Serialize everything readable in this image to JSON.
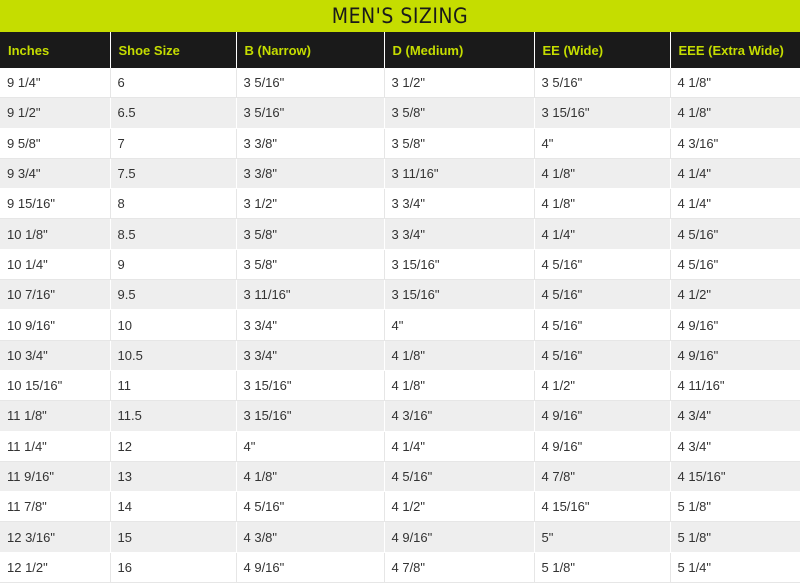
{
  "title": "MEN'S SIZING",
  "columns": [
    "Inches",
    "Shoe Size",
    "B (Narrow)",
    "D (Medium)",
    "EE (Wide)",
    "EEE (Extra Wide)"
  ],
  "rows": [
    [
      "9 1/4\"",
      "6",
      "3 5/16\"",
      "3 1/2\"",
      "3 5/16\"",
      "4 1/8\""
    ],
    [
      "9 1/2\"",
      "6.5",
      "3 5/16\"",
      "3 5/8\"",
      "3 15/16\"",
      "4 1/8\""
    ],
    [
      "9 5/8\"",
      "7",
      "3 3/8\"",
      "3 5/8\"",
      "4\"",
      "4 3/16\""
    ],
    [
      "9 3/4\"",
      "7.5",
      "3 3/8\"",
      "3 11/16\"",
      "4 1/8\"",
      "4 1/4\""
    ],
    [
      "9 15/16\"",
      "8",
      "3 1/2\"",
      "3 3/4\"",
      "4 1/8\"",
      "4 1/4\""
    ],
    [
      "10 1/8\"",
      "8.5",
      "3 5/8\"",
      "3 3/4\"",
      "4 1/4\"",
      "4 5/16\""
    ],
    [
      "10 1/4\"",
      "9",
      "3 5/8\"",
      "3 15/16\"",
      "4 5/16\"",
      "4 5/16\""
    ],
    [
      "10 7/16\"",
      "9.5",
      "3 11/16\"",
      "3 15/16\"",
      "4 5/16\"",
      "4 1/2\""
    ],
    [
      "10 9/16\"",
      "10",
      "3 3/4\"",
      "4\"",
      "4 5/16\"",
      "4 9/16\""
    ],
    [
      "10 3/4\"",
      "10.5",
      "3 3/4\"",
      "4 1/8\"",
      "4 5/16\"",
      "4 9/16\""
    ],
    [
      "10 15/16\"",
      "11",
      "3 15/16\"",
      "4 1/8\"",
      "4 1/2\"",
      "4 11/16\""
    ],
    [
      "11 1/8\"",
      "11.5",
      "3 15/16\"",
      "4 3/16\"",
      "4 9/16\"",
      "4 3/4\""
    ],
    [
      "11 1/4\"",
      "12",
      "4\"",
      "4 1/4\"",
      "4 9/16\"",
      "4 3/4\""
    ],
    [
      "11 9/16\"",
      "13",
      "4 1/8\"",
      "4 5/16\"",
      "4 7/8\"",
      "4 15/16\""
    ],
    [
      "11 7/8\"",
      "14",
      "4 5/16\"",
      "4 1/2\"",
      "4 15/16\"",
      "5 1/8\""
    ],
    [
      "12 3/16\"",
      "15",
      "4 3/8\"",
      "4 9/16\"",
      "5\"",
      "5 1/8\""
    ],
    [
      "12 1/2\"",
      "16",
      "4 9/16\"",
      "4 7/8\"",
      "5 1/8\"",
      "5 1/4\""
    ]
  ],
  "colors": {
    "accent": "#c5dd00",
    "header_bg": "#1a1a1a",
    "stripe": "#eeeeee"
  }
}
